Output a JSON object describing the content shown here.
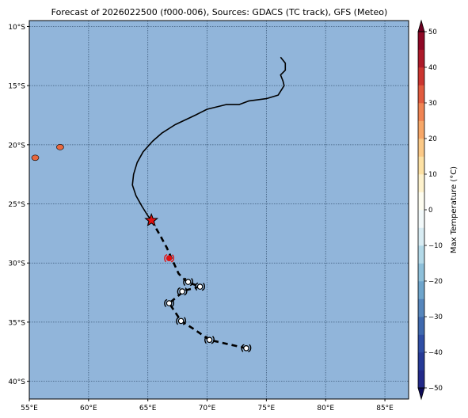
{
  "title": "Forecast of 2026022500 (f000-006), Sources: GDACS (TC track), GFS (Meteo)",
  "map": {
    "lon_range": [
      55,
      87
    ],
    "lat_range": [
      -41.5,
      -9.5
    ],
    "ocean_color": "#91b5da",
    "grid_style": "dotted",
    "x_ticks": [
      {
        "value": 55,
        "label": "55°E"
      },
      {
        "value": 60,
        "label": "60°E"
      },
      {
        "value": 65,
        "label": "65°E"
      },
      {
        "value": 70,
        "label": "70°E"
      },
      {
        "value": 75,
        "label": "75°E"
      },
      {
        "value": 80,
        "label": "80°E"
      },
      {
        "value": 85,
        "label": "85°E"
      }
    ],
    "y_ticks": [
      {
        "value": -10,
        "label": "10°S"
      },
      {
        "value": -15,
        "label": "15°S"
      },
      {
        "value": -20,
        "label": "20°S"
      },
      {
        "value": -25,
        "label": "25°S"
      },
      {
        "value": -30,
        "label": "30°S"
      },
      {
        "value": -35,
        "label": "35°S"
      },
      {
        "value": -40,
        "label": "40°S"
      }
    ],
    "islands": [
      {
        "name": "Réunion",
        "lon": 55.5,
        "lat": -21.1,
        "color": "#e8683e"
      },
      {
        "name": "Mauritius",
        "lon": 57.6,
        "lat": -20.2,
        "color": "#e8683e"
      }
    ],
    "past_track": [
      [
        76.2,
        -12.6
      ],
      [
        76.6,
        -13.1
      ],
      [
        76.6,
        -13.7
      ],
      [
        76.2,
        -14.1
      ],
      [
        76.4,
        -14.6
      ],
      [
        76.5,
        -15.0
      ],
      [
        76.0,
        -15.8
      ],
      [
        75.0,
        -16.1
      ],
      [
        73.5,
        -16.3
      ],
      [
        72.7,
        -16.6
      ],
      [
        71.6,
        -16.6
      ],
      [
        70.0,
        -17.0
      ],
      [
        69.0,
        -17.5
      ],
      [
        67.3,
        -18.3
      ],
      [
        66.2,
        -19.0
      ],
      [
        65.4,
        -19.7
      ],
      [
        64.6,
        -20.6
      ],
      [
        64.1,
        -21.5
      ],
      [
        63.8,
        -22.5
      ],
      [
        63.7,
        -23.4
      ],
      [
        64.0,
        -24.3
      ],
      [
        64.5,
        -25.2
      ],
      [
        65.0,
        -26.0
      ],
      [
        65.3,
        -26.4
      ]
    ],
    "current_position": {
      "lon": 65.3,
      "lat": -26.4,
      "color": "#e01010"
    },
    "forecast_track": [
      [
        65.3,
        -26.4
      ],
      [
        66.0,
        -27.6
      ],
      [
        66.6,
        -28.7
      ],
      [
        67.0,
        -29.6
      ],
      [
        67.6,
        -30.9
      ],
      [
        68.3,
        -31.6
      ],
      [
        69.4,
        -32.0
      ],
      [
        68.2,
        -32.3
      ],
      [
        67.9,
        -32.5
      ],
      [
        66.8,
        -33.4
      ],
      [
        67.4,
        -34.3
      ],
      [
        67.8,
        -34.9
      ],
      [
        68.9,
        -35.6
      ],
      [
        70.2,
        -36.5
      ],
      [
        71.5,
        -36.8
      ],
      [
        73.3,
        -37.2
      ]
    ],
    "forecast_symbols": [
      {
        "lon": 66.8,
        "lat": -29.6,
        "color": "#e01010"
      },
      {
        "lon": 68.4,
        "lat": -31.6,
        "color": "#000000"
      },
      {
        "lon": 69.4,
        "lat": -32.0,
        "color": "#000000"
      },
      {
        "lon": 67.9,
        "lat": -32.4,
        "color": "#000000"
      },
      {
        "lon": 66.8,
        "lat": -33.4,
        "color": "#000000"
      },
      {
        "lon": 67.8,
        "lat": -34.9,
        "color": "#000000"
      },
      {
        "lon": 70.2,
        "lat": -36.5,
        "color": "#000000"
      },
      {
        "lon": 73.3,
        "lat": -37.2,
        "color": "#000000"
      }
    ]
  },
  "colorbar": {
    "label": "Max Temperature (°C)",
    "min": -55,
    "max": 55,
    "ticks": [
      50,
      40,
      30,
      20,
      10,
      0,
      -10,
      -20,
      -30,
      -40,
      -50
    ],
    "segments": [
      {
        "from": -55,
        "to": -50,
        "color": "#0e0b58"
      },
      {
        "from": -50,
        "to": -45,
        "color": "#232a8a"
      },
      {
        "from": -45,
        "to": -40,
        "color": "#263a97"
      },
      {
        "from": -40,
        "to": -35,
        "color": "#2f4ea5"
      },
      {
        "from": -35,
        "to": -30,
        "color": "#3f69ae"
      },
      {
        "from": -30,
        "to": -25,
        "color": "#5686bc"
      },
      {
        "from": -25,
        "to": -20,
        "color": "#6ea5cc"
      },
      {
        "from": -20,
        "to": -15,
        "color": "#8ec0da"
      },
      {
        "from": -15,
        "to": -10,
        "color": "#b3d9e8"
      },
      {
        "from": -10,
        "to": -5,
        "color": "#d8ecf3"
      },
      {
        "from": -5,
        "to": 0,
        "color": "#f2f9fa"
      },
      {
        "from": 0,
        "to": 5,
        "color": "#fefdf0"
      },
      {
        "from": 5,
        "to": 10,
        "color": "#fef2cd"
      },
      {
        "from": 10,
        "to": 15,
        "color": "#fde1a4"
      },
      {
        "from": 15,
        "to": 20,
        "color": "#fbc987"
      },
      {
        "from": 20,
        "to": 25,
        "color": "#f7a768"
      },
      {
        "from": 25,
        "to": 30,
        "color": "#f08453"
      },
      {
        "from": 30,
        "to": 35,
        "color": "#e15b3f"
      },
      {
        "from": 35,
        "to": 40,
        "color": "#cb3530"
      },
      {
        "from": 40,
        "to": 45,
        "color": "#ad1a2a"
      },
      {
        "from": 45,
        "to": 50,
        "color": "#8f0826"
      },
      {
        "from": 50,
        "to": 55,
        "color": "#6d0020"
      }
    ]
  }
}
